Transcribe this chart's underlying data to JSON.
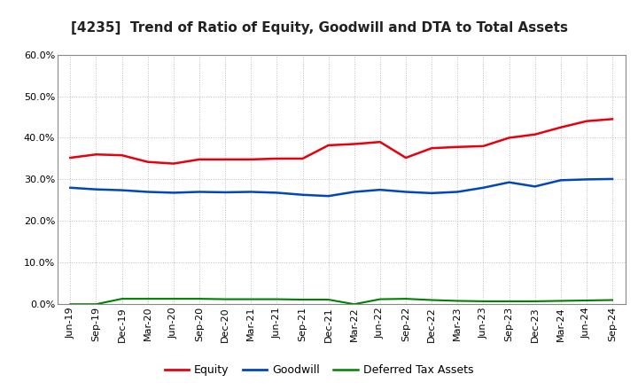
{
  "title": "[4235]  Trend of Ratio of Equity, Goodwill and DTA to Total Assets",
  "x_labels": [
    "Jun-19",
    "Sep-19",
    "Dec-19",
    "Mar-20",
    "Jun-20",
    "Sep-20",
    "Dec-20",
    "Mar-21",
    "Jun-21",
    "Sep-21",
    "Dec-21",
    "Mar-22",
    "Jun-22",
    "Sep-22",
    "Dec-22",
    "Mar-23",
    "Jun-23",
    "Sep-23",
    "Dec-23",
    "Mar-24",
    "Jun-24",
    "Sep-24"
  ],
  "equity": [
    0.352,
    0.36,
    0.358,
    0.342,
    0.338,
    0.348,
    0.348,
    0.348,
    0.35,
    0.35,
    0.382,
    0.385,
    0.39,
    0.352,
    0.375,
    0.378,
    0.38,
    0.4,
    0.408,
    0.425,
    0.44,
    0.445
  ],
  "goodwill": [
    0.28,
    0.276,
    0.274,
    0.27,
    0.268,
    0.27,
    0.269,
    0.27,
    0.268,
    0.263,
    0.26,
    0.27,
    0.275,
    0.27,
    0.267,
    0.27,
    0.28,
    0.293,
    0.283,
    0.298,
    0.3,
    0.301
  ],
  "dta": [
    0.0,
    0.0,
    0.013,
    0.013,
    0.013,
    0.013,
    0.012,
    0.012,
    0.012,
    0.011,
    0.011,
    0.0,
    0.012,
    0.013,
    0.01,
    0.008,
    0.007,
    0.007,
    0.007,
    0.008,
    0.009,
    0.01
  ],
  "equity_color": "#e8000e",
  "goodwill_color": "#0047bb",
  "dta_color": "#008000",
  "ylim": [
    0.0,
    0.6
  ],
  "yticks": [
    0.0,
    0.1,
    0.2,
    0.3,
    0.4,
    0.5,
    0.6
  ],
  "legend_labels": [
    "Equity",
    "Goodwill",
    "Deferred Tax Assets"
  ],
  "bg_color": "#ffffff",
  "grid_color": "#bbbbbb",
  "title_fontsize": 11,
  "tick_fontsize": 8,
  "legend_fontsize": 9
}
